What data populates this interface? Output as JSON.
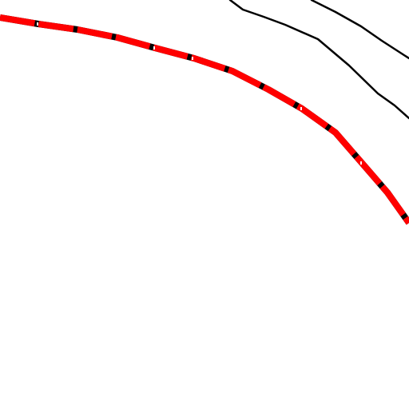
{
  "map": {
    "background_color": "#ffffff",
    "features": [
      {
        "kind": "route",
        "style": "red-line-with-black-ticks",
        "line_color": "#ff0000",
        "tick_color": "#000000"
      },
      {
        "kind": "contour",
        "style": "thin-black-line",
        "line_color": "#000000"
      },
      {
        "kind": "contour",
        "style": "thin-black-line",
        "line_color": "#000000"
      }
    ]
  }
}
